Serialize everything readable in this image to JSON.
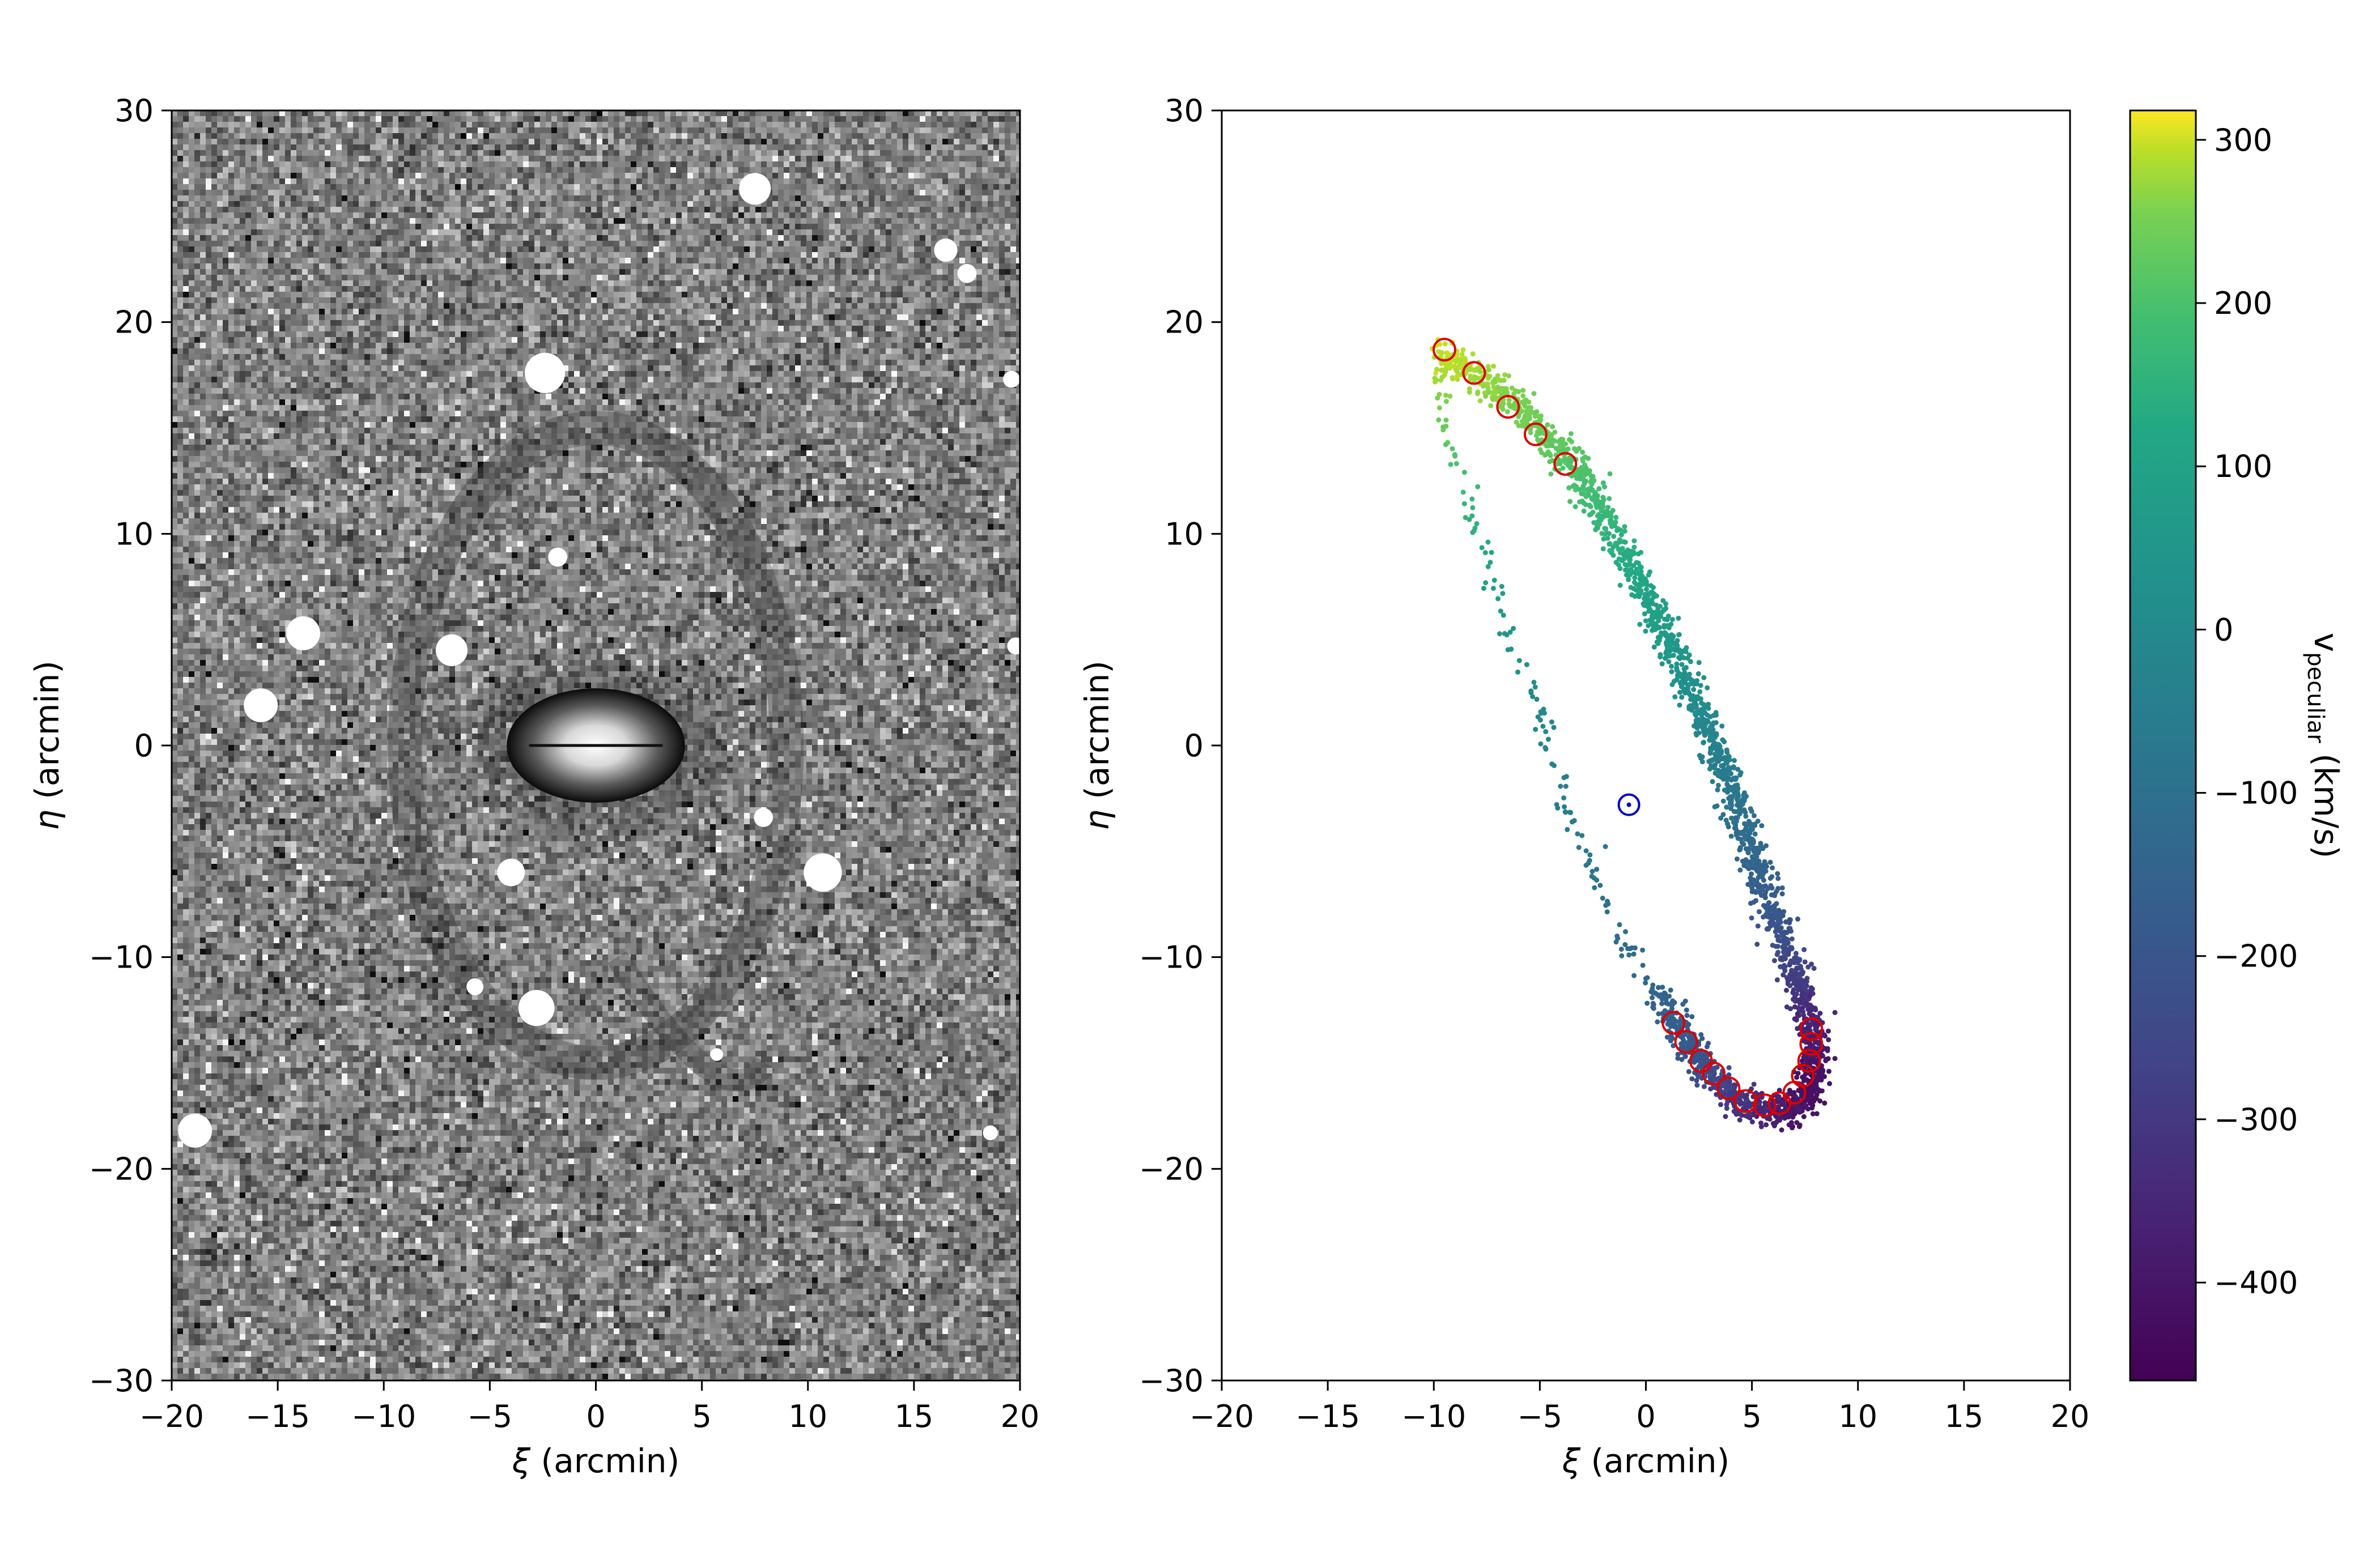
{
  "chart_data": [
    {
      "type": "heatmap",
      "xlabel_sym": "ξ",
      "xlabel_rest": " (arcmin)",
      "ylabel_sym": "η",
      "ylabel_rest": " (arcmin)",
      "xlim": [
        -20,
        20
      ],
      "ylim": [
        -30,
        30
      ],
      "xticks": [
        -20,
        -15,
        -10,
        -5,
        0,
        5,
        10,
        15,
        20
      ],
      "yticks": [
        -30,
        -20,
        -10,
        0,
        10,
        20,
        30
      ],
      "colormap": "gray",
      "bright_sources": [
        {
          "x": 7.5,
          "y": 26.3,
          "r": 0.75
        },
        {
          "x": 16.5,
          "y": 23.4,
          "r": 0.55
        },
        {
          "x": 17.5,
          "y": 22.3,
          "r": 0.45
        },
        {
          "x": -2.4,
          "y": 17.6,
          "r": 0.95
        },
        {
          "x": 19.6,
          "y": 17.3,
          "r": 0.4
        },
        {
          "x": -1.8,
          "y": 8.9,
          "r": 0.45
        },
        {
          "x": -13.8,
          "y": 5.3,
          "r": 0.8
        },
        {
          "x": -6.8,
          "y": 4.5,
          "r": 0.75
        },
        {
          "x": 19.8,
          "y": 4.7,
          "r": 0.4
        },
        {
          "x": -15.8,
          "y": 1.9,
          "r": 0.8
        },
        {
          "x": -4.0,
          "y": -6.0,
          "r": 0.65
        },
        {
          "x": 10.7,
          "y": -6.0,
          "r": 0.9
        },
        {
          "x": -5.7,
          "y": -11.4,
          "r": 0.4
        },
        {
          "x": -2.8,
          "y": -12.4,
          "r": 0.85
        },
        {
          "x": -18.9,
          "y": -18.2,
          "r": 0.8
        },
        {
          "x": 18.6,
          "y": -18.3,
          "r": 0.35
        },
        {
          "x": 5.7,
          "y": -14.6,
          "r": 0.3
        },
        {
          "x": 7.9,
          "y": -3.4,
          "r": 0.45
        }
      ],
      "galaxy": {
        "x": 0,
        "y": 0,
        "a": 4.2,
        "b": 2.7
      }
    },
    {
      "type": "scatter",
      "xlabel_sym": "ξ",
      "xlabel_rest": " (arcmin)",
      "ylabel_sym": "η",
      "ylabel_rest": " (arcmin)",
      "xlim": [
        -20,
        20
      ],
      "ylim": [
        -30,
        30
      ],
      "xticks": [
        -20,
        -15,
        -10,
        -5,
        0,
        5,
        10,
        15,
        20
      ],
      "yticks": [
        -30,
        -20,
        -10,
        0,
        10,
        20,
        30
      ],
      "colorbar": {
        "label_main": "v",
        "label_sub": "peculiar",
        "label_unit": " (km/s)",
        "range": [
          -460,
          318
        ],
        "ticks": [
          300,
          200,
          100,
          0,
          -100,
          -200,
          -300,
          -400
        ],
        "colormap": "viridis"
      },
      "ring_track": [
        {
          "x": -9.6,
          "y": 18.6,
          "v": 300
        },
        {
          "x": -8.0,
          "y": 17.6,
          "v": 280
        },
        {
          "x": -6.2,
          "y": 16.2,
          "v": 255
        },
        {
          "x": -4.6,
          "y": 14.6,
          "v": 235
        },
        {
          "x": -3.4,
          "y": 13.2,
          "v": 210
        },
        {
          "x": -2.3,
          "y": 11.4,
          "v": 180
        },
        {
          "x": -1.1,
          "y": 9.2,
          "v": 140
        },
        {
          "x": 0.0,
          "y": 7.0,
          "v": 100
        },
        {
          "x": 1.0,
          "y": 5.0,
          "v": 65
        },
        {
          "x": 2.0,
          "y": 3.0,
          "v": 30
        },
        {
          "x": 2.8,
          "y": 1.0,
          "v": -10
        },
        {
          "x": 3.6,
          "y": -1.0,
          "v": -50
        },
        {
          "x": 4.3,
          "y": -3.0,
          "v": -90
        },
        {
          "x": 5.0,
          "y": -5.0,
          "v": -130
        },
        {
          "x": 5.7,
          "y": -7.0,
          "v": -170
        },
        {
          "x": 6.4,
          "y": -9.0,
          "v": -220
        },
        {
          "x": 7.1,
          "y": -11.0,
          "v": -280
        },
        {
          "x": 7.6,
          "y": -12.6,
          "v": -340
        },
        {
          "x": 7.9,
          "y": -14.0,
          "v": -380
        },
        {
          "x": 8.0,
          "y": -15.4,
          "v": -410
        },
        {
          "x": 7.6,
          "y": -16.5,
          "v": -420
        },
        {
          "x": 6.8,
          "y": -17.2,
          "v": -400
        },
        {
          "x": 5.6,
          "y": -17.3,
          "v": -360
        },
        {
          "x": 4.4,
          "y": -16.8,
          "v": -310
        },
        {
          "x": 3.4,
          "y": -15.9,
          "v": -260
        },
        {
          "x": 2.4,
          "y": -14.8,
          "v": -210
        },
        {
          "x": 1.6,
          "y": -13.5,
          "v": -170
        },
        {
          "x": 0.6,
          "y": -11.8,
          "v": -140
        },
        {
          "x": -0.6,
          "y": -10.0,
          "v": -120
        },
        {
          "x": -1.6,
          "y": -8.2,
          "v": -100
        },
        {
          "x": -2.6,
          "y": -6.0,
          "v": -80
        },
        {
          "x": -3.4,
          "y": -3.6,
          "v": -60
        },
        {
          "x": -4.2,
          "y": -1.2,
          "v": -40
        },
        {
          "x": -5.0,
          "y": 1.2,
          "v": -10
        },
        {
          "x": -6.0,
          "y": 4.0,
          "v": 30
        },
        {
          "x": -7.0,
          "y": 7.0,
          "v": 80
        },
        {
          "x": -7.9,
          "y": 10.0,
          "v": 140
        },
        {
          "x": -8.7,
          "y": 12.8,
          "v": 190
        },
        {
          "x": -9.4,
          "y": 15.4,
          "v": 240
        },
        {
          "x": -9.8,
          "y": 17.4,
          "v": 280
        }
      ],
      "red_markers": [
        {
          "x": -9.5,
          "y": 18.7
        },
        {
          "x": -8.1,
          "y": 17.6
        },
        {
          "x": -6.5,
          "y": 16.0
        },
        {
          "x": -5.2,
          "y": 14.7
        },
        {
          "x": -3.8,
          "y": 13.3
        },
        {
          "x": 1.3,
          "y": -13.1
        },
        {
          "x": 1.9,
          "y": -14.0
        },
        {
          "x": 2.6,
          "y": -14.9
        },
        {
          "x": 3.2,
          "y": -15.5
        },
        {
          "x": 3.9,
          "y": -16.2
        },
        {
          "x": 4.7,
          "y": -16.8
        },
        {
          "x": 5.6,
          "y": -17.0
        },
        {
          "x": 6.3,
          "y": -16.9
        },
        {
          "x": 7.0,
          "y": -16.4
        },
        {
          "x": 7.4,
          "y": -15.6
        },
        {
          "x": 7.7,
          "y": -14.9
        },
        {
          "x": 7.8,
          "y": -14.1
        },
        {
          "x": 7.8,
          "y": -13.4
        }
      ],
      "center_marker": {
        "x": -0.8,
        "y": -2.8
      }
    }
  ]
}
